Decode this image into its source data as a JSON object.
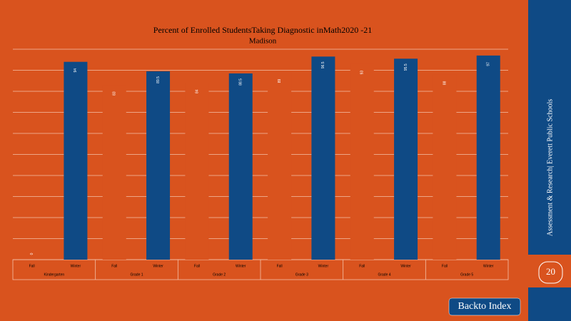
{
  "chart_data": {
    "type": "bar",
    "title": "Percent of Enrolled StudentsTaking Diagnostic inMath2020 -21",
    "subtitle": "Madison",
    "categories": [
      "Kindergarten",
      "Grade 1",
      "Grade 2",
      "Grade 3",
      "Grade 4",
      "Grade 5"
    ],
    "series": [
      {
        "name": "Fall",
        "color": "#d9531e",
        "values": [
          0,
          83,
          84,
          89,
          93,
          88
        ]
      },
      {
        "name": "Winter",
        "color": "#0f4a85",
        "values": [
          94,
          89.5,
          88.5,
          96.5,
          95.5,
          97
        ]
      }
    ],
    "ylim": [
      0,
      100
    ],
    "yticks": [
      0,
      10,
      20,
      30,
      40,
      50,
      60,
      70,
      80,
      90,
      100
    ],
    "grid": true
  },
  "sidebar": {
    "text": "Assessment & Research|  Everett  Public Schools",
    "page": "20"
  },
  "button": {
    "label": "Backto Index"
  }
}
